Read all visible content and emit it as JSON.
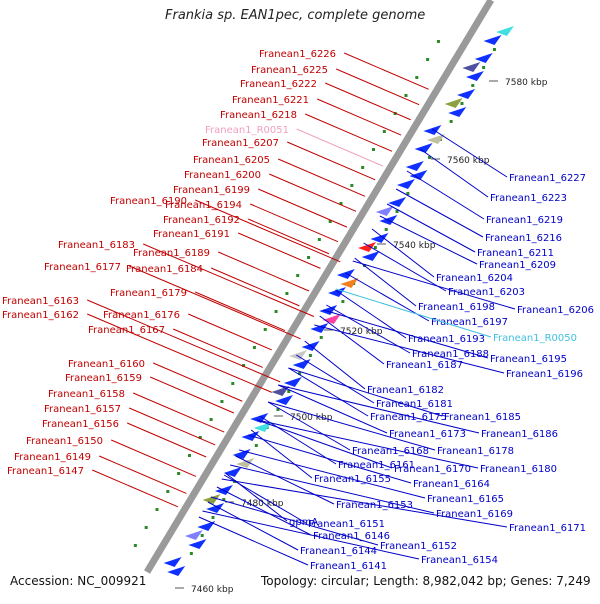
{
  "title": "Frankia sp. EAN1pec, complete genome",
  "accession": "Accession: NC_009921",
  "summary": "Topology: circular; Length: 8,982,042 bp; Genes: 7,249",
  "colors": {
    "forward_label": "#c00000",
    "reverse_label": "#0000c8",
    "forward_rna_label": "#f0a0c0",
    "reverse_rna_label": "#40c0e0",
    "axis": "#9a9a9a",
    "forward_arrow": "#ff1e1e",
    "reverse_arrow": "#1030ff",
    "green_dot": "#2a8a2a"
  },
  "scale_ticks": [
    "7460 kbp",
    "7480 kbp",
    "7500 kbp",
    "7520 kbp",
    "7540 kbp",
    "7560 kbp",
    "7580 kbp"
  ],
  "forward_genes": [
    "Franean1_6226",
    "Franean1_6225",
    "Franean1_6222",
    "Franean1_6221",
    "Franean1_6218",
    "Franean1_R0051",
    "Franean1_6207",
    "Franean1_6205",
    "Franean1_6200",
    "Franean1_6199",
    "Franean1_6190",
    "Franean1_6194",
    "Franean1_6192",
    "Franean1_6191",
    "Franean1_6183",
    "Franean1_6189",
    "Franean1_6177",
    "Franean1_6184",
    "Franean1_6179",
    "Franean1_6163",
    "Franean1_6162",
    "Franean1_6176",
    "Franean1_6167",
    "Franean1_6160",
    "Franean1_6159",
    "Franean1_6158",
    "Franean1_6157",
    "Franean1_6156",
    "Franean1_6150",
    "Franean1_6149",
    "Franean1_6147"
  ],
  "reverse_genes": [
    "Franean1_6227",
    "Franean1_6223",
    "Franean1_6219",
    "Franean1_6216",
    "Franean1_6211",
    "Franean1_6209",
    "Franean1_6204",
    "Franean1_6203",
    "Franean1_6206",
    "Franean1_6198",
    "Franean1_6197",
    "Franean1_R0050",
    "Franean1_6193",
    "Franean1_6188",
    "Franean1_6195",
    "Franean1_6187",
    "Franean1_6196",
    "Franean1_6182",
    "Franean1_6181",
    "Franean1_6175",
    "Franean1_6185",
    "Franean1_6173",
    "Franean1_6186",
    "Franean1_6168",
    "Franean1_6178",
    "Franean1_6161",
    "Franean1_6170",
    "Franean1_6180",
    "Franean1_6155",
    "Franean1_6164",
    "Franean1_6165",
    "Franean1_6153",
    "Franean1_6169",
    "gpmA",
    "Franean1_6151",
    "Franean1_6171",
    "Franean1_6146",
    "Franean1_6152",
    "Franean1_6144",
    "Franean1_6154",
    "Franean1_6141"
  ]
}
